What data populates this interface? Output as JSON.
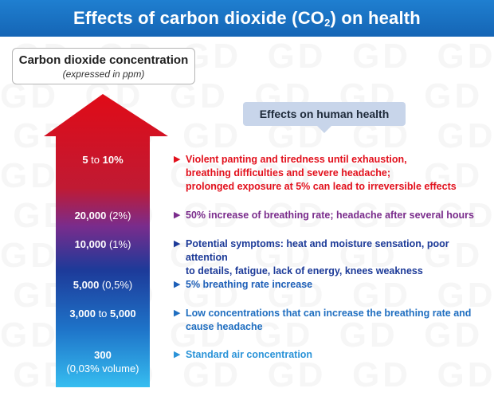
{
  "header": {
    "title_prefix": "Effects of carbon dioxide (CO",
    "title_subscript": "2",
    "title_suffix": ") on health"
  },
  "concentration_box": {
    "title": "Carbon dioxide concentration",
    "subtitle": "(expressed in ppm)"
  },
  "effects_box": {
    "title": "Effects on human health"
  },
  "colors": {
    "arrow_top": "#e00b17",
    "arrow_mid_purple": "#7a2c8c",
    "arrow_mid_blue": "#1d3a99",
    "arrow_bottom": "#2fb3ec",
    "title_bar": "#1a72c3",
    "watermark": "GD"
  },
  "levels": [
    {
      "bold": "5",
      "connector": " to ",
      "bold2": "10%",
      "extra": "",
      "line2": "",
      "effect": "Violent panting and tiredness until exhaustion, breathing difficulties and severe headache; prolonged exposure at 5% can lead to irreversible effects",
      "effect_lines": [
        "Violent panting and tiredness until exhaustion,",
        "breathing difficulties and severe headache;",
        "prolonged exposure at 5% can lead to irreversible effects"
      ],
      "color": "#e2101c"
    },
    {
      "bold": "20,000",
      "connector": "",
      "bold2": "",
      "extra": " (2%)",
      "line2": "",
      "effect_lines": [
        "50% increase of breathing rate; headache after several hours"
      ],
      "color": "#7a2c8c"
    },
    {
      "bold": "10,000",
      "connector": "",
      "bold2": "",
      "extra": " (1%)",
      "line2": "",
      "effect_lines": [
        "Potential symptoms: heat and moisture sensation, poor attention",
        "to details, fatigue, lack of energy, knees weakness"
      ],
      "color": "#1c3a98"
    },
    {
      "bold": "5,000",
      "connector": "",
      "bold2": "",
      "extra": " (0,5%)",
      "line2": "",
      "effect_lines": [
        "5% breathing rate increase"
      ],
      "color": "#1d5fb8"
    },
    {
      "bold": "3,000",
      "connector": " to ",
      "bold2": "5,000",
      "extra": "",
      "line2": "",
      "effect_lines": [
        "Low concentrations that can increase the breathing rate and",
        "cause headache"
      ],
      "color": "#1f6ec0"
    },
    {
      "bold": "300",
      "connector": "",
      "bold2": "",
      "extra": "",
      "line2": "(0,03% volume)",
      "effect_lines": [
        "Standard air concentration"
      ],
      "color": "#2a93d8"
    }
  ]
}
